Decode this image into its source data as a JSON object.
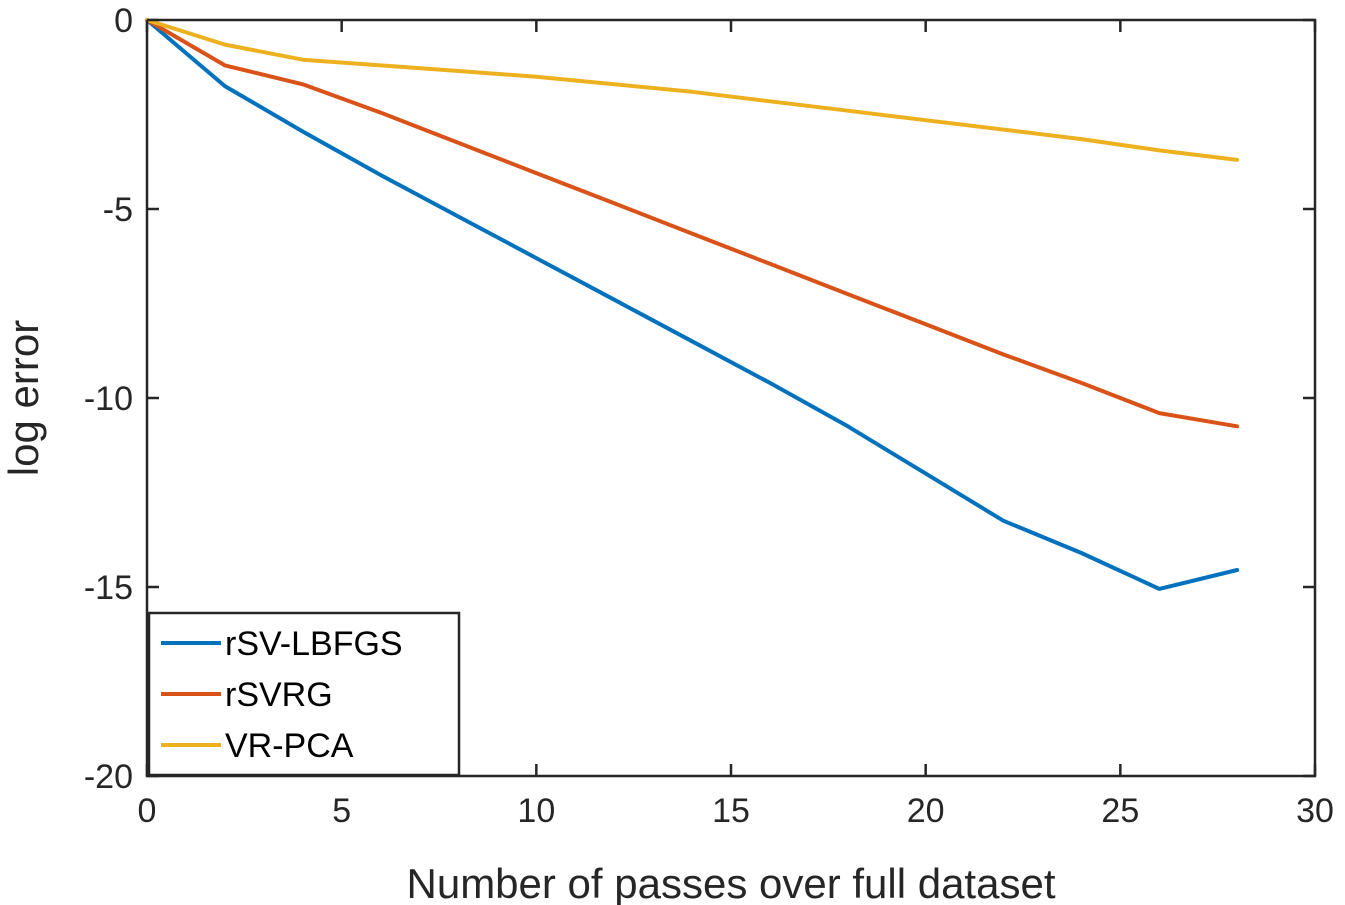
{
  "chart_data": {
    "type": "line",
    "title": "",
    "xlabel": "Number of passes over full dataset",
    "ylabel": "log error",
    "xlim": [
      0,
      30
    ],
    "ylim": [
      -20,
      0
    ],
    "xticks": [
      0,
      5,
      10,
      15,
      20,
      25,
      30
    ],
    "yticks": [
      0,
      -5,
      -10,
      -15,
      -20
    ],
    "xtick_labels": [
      "0",
      "5",
      "10",
      "15",
      "20",
      "25",
      "30"
    ],
    "ytick_labels": [
      "0",
      "-5",
      "-10",
      "-15",
      "-20"
    ],
    "grid": false,
    "legend_position": "bottom-left",
    "series": [
      {
        "name": "rSV-LBFGS",
        "color": "#0072BD",
        "x": [
          0,
          2,
          4,
          6,
          8,
          10,
          12,
          14,
          16,
          18,
          20,
          22,
          24,
          26,
          28
        ],
        "y": [
          0,
          -1.75,
          -2.95,
          -4.1,
          -5.2,
          -6.3,
          -7.4,
          -8.5,
          -9.6,
          -10.75,
          -12.0,
          -13.25,
          -14.1,
          -15.05,
          -14.55
        ]
      },
      {
        "name": "rSVRG",
        "color": "#D95319",
        "x": [
          0,
          2,
          4,
          6,
          8,
          10,
          12,
          14,
          16,
          18,
          20,
          22,
          24,
          26,
          28
        ],
        "y": [
          0,
          -1.2,
          -1.7,
          -2.45,
          -3.25,
          -4.05,
          -4.85,
          -5.65,
          -6.45,
          -7.25,
          -8.05,
          -8.85,
          -9.6,
          -10.4,
          -10.75
        ]
      },
      {
        "name": "VR-PCA",
        "color": "#EDB120",
        "x": [
          0,
          2,
          4,
          6,
          8,
          10,
          12,
          14,
          16,
          18,
          20,
          22,
          24,
          26,
          28
        ],
        "y": [
          0,
          -0.65,
          -1.05,
          -1.2,
          -1.35,
          -1.5,
          -1.7,
          -1.9,
          -2.15,
          -2.4,
          -2.65,
          -2.9,
          -3.15,
          -3.45,
          -3.7
        ]
      }
    ]
  }
}
